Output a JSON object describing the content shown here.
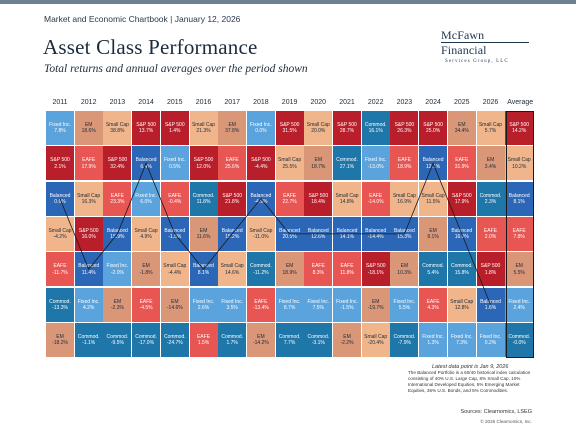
{
  "header": {
    "top_line": "Market and Economic Chartbook | January 12, 2026",
    "title": "Asset Class Performance",
    "subtitle": "Total returns and annual averages over the period shown"
  },
  "logo": {
    "name": "McFawn Financial",
    "sub": "Services Group, LLC"
  },
  "colors": {
    "S&P 500": "#b81f2b",
    "EAFE": "#e85654",
    "Small Cap": "#f0b58a",
    "EM": "#d99778",
    "Balanced": "#2c66b6",
    "Fixed Inc.": "#5ba3dc",
    "Commod.": "#1f76a9"
  },
  "chart_data": {
    "type": "table",
    "title": "Asset Class Performance",
    "subtitle": "Total returns and annual averages over the period shown",
    "columns": [
      "2011",
      "2012",
      "2013",
      "2014",
      "2015",
      "2016",
      "2017",
      "2018",
      "2019",
      "2020",
      "2021",
      "2022",
      "2023",
      "2024",
      "2025",
      "2026",
      "Average"
    ],
    "rows_rank_order": "best to worst",
    "cells": [
      [
        {
          "a": "Fixed Inc.",
          "v": "7.8%"
        },
        {
          "a": "EM",
          "v": "18.6%"
        },
        {
          "a": "Small Cap",
          "v": "38.8%"
        },
        {
          "a": "S&P 500",
          "v": "13.7%"
        },
        {
          "a": "S&P 500",
          "v": "1.4%"
        },
        {
          "a": "Small Cap",
          "v": "21.3%"
        },
        {
          "a": "EM",
          "v": "37.8%"
        },
        {
          "a": "Fixed Inc.",
          "v": "0.0%"
        },
        {
          "a": "S&P 500",
          "v": "31.5%"
        },
        {
          "a": "Small Cap",
          "v": "20.0%"
        },
        {
          "a": "S&P 500",
          "v": "28.7%"
        },
        {
          "a": "Commod.",
          "v": "16.1%"
        },
        {
          "a": "S&P 500",
          "v": "26.3%"
        },
        {
          "a": "S&P 500",
          "v": "25.0%"
        },
        {
          "a": "EM",
          "v": "34.4%"
        },
        {
          "a": "Small Cap",
          "v": "5.7%"
        },
        {
          "a": "S&P 500",
          "v": "14.2%"
        }
      ],
      [
        {
          "a": "S&P 500",
          "v": "2.1%"
        },
        {
          "a": "EAFE",
          "v": "17.9%"
        },
        {
          "a": "S&P 500",
          "v": "32.4%"
        },
        {
          "a": "Balanced",
          "v": "6.4%"
        },
        {
          "a": "Fixed Inc.",
          "v": "0.5%"
        },
        {
          "a": "S&P 500",
          "v": "12.0%"
        },
        {
          "a": "EAFE",
          "v": "25.6%"
        },
        {
          "a": "S&P 500",
          "v": "-4.4%"
        },
        {
          "a": "Small Cap",
          "v": "25.5%"
        },
        {
          "a": "EM",
          "v": "18.7%"
        },
        {
          "a": "Commod.",
          "v": "27.1%"
        },
        {
          "a": "Fixed Inc.",
          "v": "-13.0%"
        },
        {
          "a": "EAFE",
          "v": "18.9%"
        },
        {
          "a": "Balanced",
          "v": "12.1%"
        },
        {
          "a": "EAFE",
          "v": "31.9%"
        },
        {
          "a": "EM",
          "v": "3.4%"
        },
        {
          "a": "Small Cap",
          "v": "10.2%"
        }
      ],
      [
        {
          "a": "Balanced",
          "v": "0.6%"
        },
        {
          "a": "Small Cap",
          "v": "16.3%"
        },
        {
          "a": "EAFE",
          "v": "23.3%"
        },
        {
          "a": "Fixed Inc.",
          "v": "6.0%"
        },
        {
          "a": "EAFE",
          "v": "-0.4%"
        },
        {
          "a": "Commod.",
          "v": "11.8%"
        },
        {
          "a": "S&P 500",
          "v": "21.8%"
        },
        {
          "a": "Balanced",
          "v": "-4.9%"
        },
        {
          "a": "EAFE",
          "v": "22.7%"
        },
        {
          "a": "S&P 500",
          "v": "18.4%"
        },
        {
          "a": "Small Cap",
          "v": "14.8%"
        },
        {
          "a": "EAFE",
          "v": "-14.0%"
        },
        {
          "a": "Small Cap",
          "v": "16.9%"
        },
        {
          "a": "Small Cap",
          "v": "11.5%"
        },
        {
          "a": "S&P 500",
          "v": "17.9%"
        },
        {
          "a": "Commod.",
          "v": "2.3%"
        },
        {
          "a": "Balanced",
          "v": "8.1%"
        }
      ],
      [
        {
          "a": "Small Cap",
          "v": "-4.2%"
        },
        {
          "a": "S&P 500",
          "v": "16.0%"
        },
        {
          "a": "Balanced",
          "v": "15.9%"
        },
        {
          "a": "Small Cap",
          "v": "4.9%"
        },
        {
          "a": "Balanced",
          "v": "-1.5%"
        },
        {
          "a": "EM",
          "v": "11.6%"
        },
        {
          "a": "Balanced",
          "v": "15.2%"
        },
        {
          "a": "Small Cap",
          "v": "-11.0%"
        },
        {
          "a": "Balanced",
          "v": "20.5%"
        },
        {
          "a": "Balanced",
          "v": "12.6%"
        },
        {
          "a": "Balanced",
          "v": "14.1%"
        },
        {
          "a": "Balanced",
          "v": "-14.4%"
        },
        {
          "a": "Balanced",
          "v": "15.3%"
        },
        {
          "a": "EM",
          "v": "8.1%"
        },
        {
          "a": "Balanced",
          "v": "16.0%"
        },
        {
          "a": "EAFE",
          "v": "2.0%"
        },
        {
          "a": "EAFE",
          "v": "7.8%"
        }
      ],
      [
        {
          "a": "EAFE",
          "v": "-11.7%"
        },
        {
          "a": "Balanced",
          "v": "11.4%"
        },
        {
          "a": "Fixed Inc.",
          "v": "-2.0%"
        },
        {
          "a": "EM",
          "v": "-1.8%"
        },
        {
          "a": "Small Cap",
          "v": "-4.4%"
        },
        {
          "a": "Balanced",
          "v": "8.1%"
        },
        {
          "a": "Small Cap",
          "v": "14.6%"
        },
        {
          "a": "Commod.",
          "v": "-11.2%"
        },
        {
          "a": "EM",
          "v": "18.9%"
        },
        {
          "a": "EAFE",
          "v": "8.3%"
        },
        {
          "a": "EAFE",
          "v": "11.8%"
        },
        {
          "a": "S&P 500",
          "v": "-18.1%"
        },
        {
          "a": "EM",
          "v": "10.3%"
        },
        {
          "a": "Commod.",
          "v": "5.4%"
        },
        {
          "a": "Commod.",
          "v": "15.8%"
        },
        {
          "a": "S&P 500",
          "v": "1.8%"
        },
        {
          "a": "EM",
          "v": "5.5%"
        }
      ],
      [
        {
          "a": "Commod.",
          "v": "-13.3%"
        },
        {
          "a": "Fixed Inc.",
          "v": "4.2%"
        },
        {
          "a": "EM",
          "v": "-2.3%"
        },
        {
          "a": "EAFE",
          "v": "-4.5%"
        },
        {
          "a": "EM",
          "v": "-14.6%"
        },
        {
          "a": "Fixed Inc.",
          "v": "2.6%"
        },
        {
          "a": "Fixed Inc.",
          "v": "3.5%"
        },
        {
          "a": "EAFE",
          "v": "-13.4%"
        },
        {
          "a": "Fixed Inc.",
          "v": "8.7%"
        },
        {
          "a": "Fixed Inc.",
          "v": "7.5%"
        },
        {
          "a": "Fixed Inc.",
          "v": "-1.5%"
        },
        {
          "a": "EM",
          "v": "-19.7%"
        },
        {
          "a": "Fixed Inc.",
          "v": "5.5%"
        },
        {
          "a": "EAFE",
          "v": "4.3%"
        },
        {
          "a": "Small Cap",
          "v": "12.8%"
        },
        {
          "a": "Balanced",
          "v": "1.6%"
        },
        {
          "a": "Fixed Inc.",
          "v": "2.4%"
        }
      ],
      [
        {
          "a": "EM",
          "v": "-18.2%"
        },
        {
          "a": "Commod.",
          "v": "-1.1%"
        },
        {
          "a": "Commod.",
          "v": "-9.5%"
        },
        {
          "a": "Commod.",
          "v": "-17.0%"
        },
        {
          "a": "Commod.",
          "v": "-24.7%"
        },
        {
          "a": "EAFE",
          "v": "1.5%"
        },
        {
          "a": "Commod.",
          "v": "1.7%"
        },
        {
          "a": "EM",
          "v": "-14.2%"
        },
        {
          "a": "Commod.",
          "v": "7.7%"
        },
        {
          "a": "Commod.",
          "v": "-3.1%"
        },
        {
          "a": "EM",
          "v": "-2.2%"
        },
        {
          "a": "Small Cap",
          "v": "-20.4%"
        },
        {
          "a": "Commod.",
          "v": "-7.9%"
        },
        {
          "a": "Fixed Inc.",
          "v": "1.3%"
        },
        {
          "a": "Fixed Inc.",
          "v": "7.3%"
        },
        {
          "a": "Fixed Inc.",
          "v": "0.2%"
        },
        {
          "a": "Commod.",
          "v": "-0.0%"
        }
      ]
    ]
  },
  "notes": {
    "latest": "Latest data point is Jan 9, 2026",
    "footnote": "The Balanced Portfolio is a 60/40 historical index calculation consisting of 40% U.S. Large Cap, 8% Small Cap, 10% International Developed Equities, 5% Emerging Market Equities, 35% U.S. Bonds, and 5% Commodities.",
    "sources": "Sources: Clearnomics, LSEG",
    "copyright": "© 2026 Clearnomics, Inc."
  }
}
